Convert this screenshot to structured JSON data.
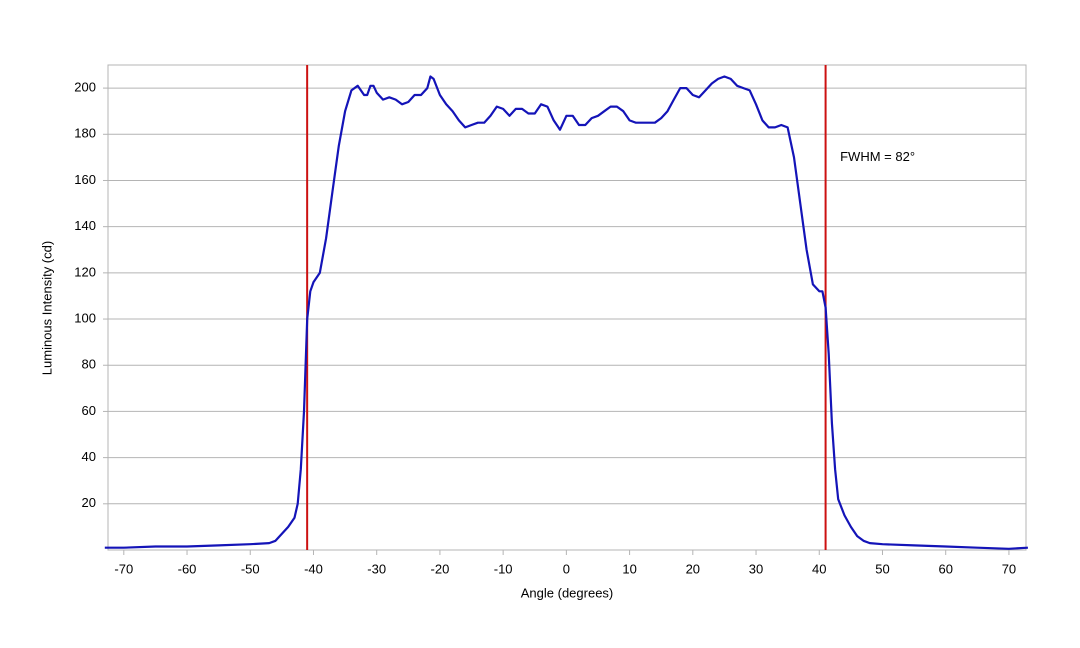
{
  "chart_data": {
    "type": "line",
    "x_label": "Angle (degrees)",
    "y_label": "Luminous Intensity (cd)",
    "x": [
      -73,
      -70,
      -65,
      -60,
      -55,
      -50,
      -47,
      -46,
      -45,
      -44,
      -43,
      -42.5,
      -42,
      -41.5,
      -41,
      -40.5,
      -40,
      -39,
      -38,
      -37,
      -36,
      -35,
      -34,
      -33,
      -32,
      -31.5,
      -31,
      -30.5,
      -30,
      -29,
      -28,
      -27,
      -26,
      -25,
      -24,
      -23,
      -22,
      -21.5,
      -21,
      -20,
      -19,
      -18,
      -17,
      -16,
      -15,
      -14,
      -13,
      -12,
      -11,
      -10,
      -9,
      -8,
      -7,
      -6,
      -5,
      -4,
      -3,
      -2,
      -1,
      0,
      1,
      2,
      3,
      4,
      5,
      6,
      7,
      8,
      9,
      10,
      11,
      12,
      13,
      14,
      15,
      16,
      17,
      18,
      19,
      20,
      21,
      22,
      23,
      24,
      25,
      26,
      27,
      28,
      29,
      30,
      31,
      32,
      33,
      34,
      35,
      36,
      37,
      38,
      39,
      40,
      40.5,
      41,
      41.5,
      42,
      42.5,
      43,
      44,
      45,
      46,
      47,
      48,
      50,
      55,
      60,
      65,
      70,
      73
    ],
    "y": [
      1,
      1,
      1.5,
      1.5,
      2,
      2.5,
      3,
      4,
      7,
      10,
      14,
      20,
      35,
      60,
      100,
      112,
      116,
      120,
      135,
      155,
      175,
      190,
      199,
      201,
      197,
      197,
      201,
      201,
      198,
      195,
      196,
      195,
      193,
      194,
      197,
      197,
      200,
      205,
      204,
      197,
      193,
      190,
      186,
      183,
      184,
      185,
      185,
      188,
      192,
      191,
      188,
      191,
      191,
      189,
      189,
      193,
      192,
      186,
      182,
      188,
      188,
      184,
      184,
      187,
      188,
      190,
      192,
      192,
      190,
      186,
      185,
      185,
      185,
      185,
      187,
      190,
      195,
      200,
      200,
      197,
      196,
      199,
      202,
      204,
      205,
      204,
      201,
      200,
      199,
      193,
      186,
      183,
      183,
      184,
      183,
      170,
      150,
      130,
      115,
      112,
      112,
      105,
      85,
      55,
      35,
      22,
      15,
      10,
      6,
      4,
      3,
      2.5,
      2,
      1.5,
      1,
      0.5,
      1
    ],
    "color": "#1414b8",
    "xlim": [
      -72.5,
      72.7
    ],
    "ylim": [
      0,
      210
    ],
    "xticks": [
      -70,
      -60,
      -50,
      -40,
      -30,
      -20,
      -10,
      0,
      10,
      20,
      30,
      40,
      50,
      60,
      70
    ],
    "yticks": [
      20,
      40,
      60,
      80,
      100,
      120,
      140,
      160,
      180,
      200
    ],
    "grid": true,
    "vlines": [
      -41,
      41
    ],
    "vline_color": "#cc1111",
    "annotation": {
      "text": "FWHM = 82°",
      "x": 43.3,
      "y": 170
    }
  }
}
